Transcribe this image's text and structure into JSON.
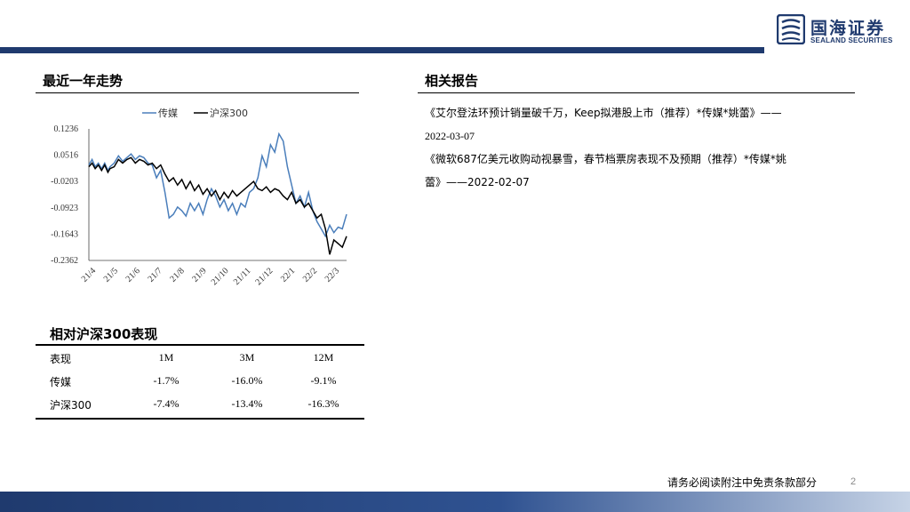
{
  "header": {
    "logo_cn": "国海证券",
    "logo_en": "SEALAND SECURITIES"
  },
  "chart_section": {
    "title": "最近一年走势"
  },
  "reports_section": {
    "title": "相关报告",
    "items": [
      {
        "line1": "《艾尔登法环预计销量破千万，Keep拟港股上市（推荐）*传媒*姚蕾》——",
        "line2": "2022-03-07"
      },
      {
        "line1": "《微软687亿美元收购动视暴雪，春节档票房表现不及预期（推荐）*传媒*姚",
        "line2": "蕾》——2022-02-07"
      }
    ]
  },
  "performance": {
    "title": "相对沪深300表现",
    "headers": [
      "表现",
      "1M",
      "3M",
      "12M"
    ],
    "rows": [
      [
        "传媒",
        "-1.7%",
        "-16.0%",
        "-9.1%"
      ],
      [
        "沪深300",
        "-7.4%",
        "-13.4%",
        "-16.3%"
      ]
    ]
  },
  "footer": {
    "disclaimer": "请务必阅读附注中免责条款部分",
    "page": "2"
  },
  "colors": {
    "brand": "#1f3a6e",
    "media_series": "#4a7ebb",
    "csi300_series": "#000000"
  },
  "chart_data": {
    "type": "line",
    "title": "",
    "xlabel": "",
    "ylabel": "",
    "ylim": [
      -0.2362,
      0.1236
    ],
    "yticks": [
      "0.1236",
      "0.0516",
      "-0.0203",
      "-0.0923",
      "-0.1643",
      "-0.2362"
    ],
    "ytick_values": [
      0.1236,
      0.0516,
      -0.0203,
      -0.0923,
      -0.1643,
      -0.2362
    ],
    "xticks": [
      "21/4",
      "21/5",
      "21/6",
      "21/7",
      "21/8",
      "21/9",
      "21/10",
      "21/11",
      "21/12",
      "22/1",
      "22/2",
      "22/3"
    ],
    "legend": "top",
    "grid": false,
    "series": [
      {
        "name": "传媒",
        "color": "#4a7ebb",
        "x": [
          0,
          0.15,
          0.3,
          0.45,
          0.6,
          0.75,
          0.9,
          1.0,
          1.2,
          1.4,
          1.6,
          1.8,
          2.0,
          2.2,
          2.4,
          2.6,
          2.8,
          3.0,
          3.2,
          3.4,
          3.6,
          3.8,
          4.0,
          4.2,
          4.4,
          4.6,
          4.8,
          5.0,
          5.2,
          5.4,
          5.6,
          5.8,
          6.0,
          6.2,
          6.4,
          6.6,
          6.8,
          7.0,
          7.2,
          7.4,
          7.6,
          7.8,
          8.0,
          8.2,
          8.4,
          8.6,
          8.8,
          9.0,
          9.2,
          9.4,
          9.6,
          9.8,
          10.0,
          10.2,
          10.4,
          10.6,
          10.8,
          11.0,
          11.2,
          11.4,
          11.6,
          11.8,
          12.0,
          12.2
        ],
        "values": [
          0.025,
          0.04,
          0.02,
          0.03,
          0.015,
          0.03,
          0.01,
          0.02,
          0.03,
          0.05,
          0.035,
          0.045,
          0.055,
          0.04,
          0.05,
          0.045,
          0.03,
          0.025,
          -0.01,
          0.01,
          -0.05,
          -0.12,
          -0.11,
          -0.09,
          -0.1,
          -0.115,
          -0.08,
          -0.1,
          -0.08,
          -0.11,
          -0.07,
          -0.04,
          -0.06,
          -0.09,
          -0.07,
          -0.1,
          -0.08,
          -0.11,
          -0.08,
          -0.09,
          -0.05,
          -0.04,
          -0.01,
          0.05,
          0.02,
          0.08,
          0.06,
          0.11,
          0.09,
          0.02,
          -0.03,
          -0.08,
          -0.06,
          -0.09,
          -0.05,
          -0.1,
          -0.13,
          -0.15,
          -0.17,
          -0.14,
          -0.16,
          -0.145,
          -0.15,
          -0.11
        ]
      },
      {
        "name": "沪深300",
        "color": "#000000",
        "x": [
          0,
          0.15,
          0.3,
          0.45,
          0.6,
          0.75,
          0.9,
          1.0,
          1.2,
          1.4,
          1.6,
          1.8,
          2.0,
          2.2,
          2.4,
          2.6,
          2.8,
          3.0,
          3.2,
          3.4,
          3.6,
          3.8,
          4.0,
          4.2,
          4.4,
          4.6,
          4.8,
          5.0,
          5.2,
          5.4,
          5.6,
          5.8,
          6.0,
          6.2,
          6.4,
          6.6,
          6.8,
          7.0,
          7.2,
          7.4,
          7.6,
          7.8,
          8.0,
          8.2,
          8.4,
          8.6,
          8.8,
          9.0,
          9.2,
          9.4,
          9.6,
          9.8,
          10.0,
          10.2,
          10.4,
          10.6,
          10.8,
          11.0,
          11.2,
          11.4,
          11.6,
          11.8,
          12.0,
          12.2
        ],
        "values": [
          0.02,
          0.03,
          0.015,
          0.025,
          0.01,
          0.025,
          0.005,
          0.015,
          0.02,
          0.04,
          0.03,
          0.04,
          0.045,
          0.03,
          0.04,
          0.035,
          0.025,
          0.03,
          0.015,
          0.025,
          0.0,
          -0.02,
          -0.01,
          -0.03,
          -0.015,
          -0.04,
          -0.02,
          -0.045,
          -0.03,
          -0.055,
          -0.04,
          -0.06,
          -0.045,
          -0.07,
          -0.05,
          -0.065,
          -0.045,
          -0.06,
          -0.05,
          -0.04,
          -0.03,
          -0.02,
          -0.04,
          -0.045,
          -0.035,
          -0.05,
          -0.04,
          -0.045,
          -0.06,
          -0.07,
          -0.05,
          -0.08,
          -0.07,
          -0.09,
          -0.08,
          -0.1,
          -0.12,
          -0.11,
          -0.15,
          -0.22,
          -0.18,
          -0.19,
          -0.2,
          -0.17
        ]
      }
    ]
  }
}
